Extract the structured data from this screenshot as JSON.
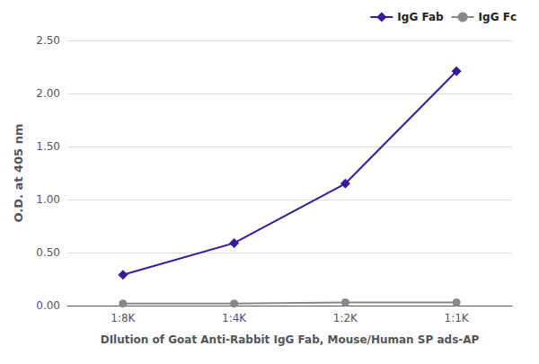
{
  "chart_data": {
    "type": "line",
    "categories": [
      "1:8K",
      "1:4K",
      "1:2K",
      "1:1K"
    ],
    "series": [
      {
        "name": "IgG Fab",
        "color": "#3a1a9a",
        "marker": "diamond",
        "values": [
          0.29,
          0.59,
          1.15,
          2.21
        ]
      },
      {
        "name": "IgG Fc",
        "color": "#888888",
        "marker": "circle",
        "values": [
          0.02,
          0.02,
          0.03,
          0.03
        ]
      }
    ],
    "xlabel": "DIlution of Goat Anti-Rabbit IgG Fab, Mouse/Human SP ads-AP",
    "ylabel": "O.D. at 405 nm",
    "ylim": [
      0.0,
      2.5
    ],
    "yticks": [
      {
        "value": 0,
        "label": "0.00"
      },
      {
        "value": 0.5,
        "label": "0.50"
      },
      {
        "value": 1,
        "label": "1.00"
      },
      {
        "value": 1.5,
        "label": "1.50"
      },
      {
        "value": 2,
        "label": "2.00"
      },
      {
        "value": 2.5,
        "label": "2.50"
      }
    ],
    "grid": true,
    "legend": "upper right"
  }
}
